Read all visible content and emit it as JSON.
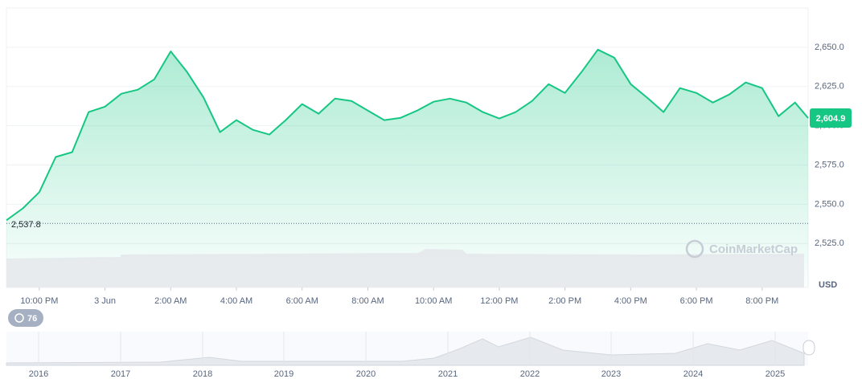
{
  "chart_data": {
    "type": "area",
    "x": [
      -1,
      -0.5,
      0,
      0.5,
      1,
      1.5,
      2,
      2.5,
      3,
      3.5,
      4,
      4.5,
      5,
      5.5,
      6,
      6.5,
      7,
      7.5,
      8,
      8.5,
      9,
      9.5,
      10,
      10.5,
      11,
      11.5,
      12,
      12.5,
      13,
      13.5,
      14,
      14.5,
      15,
      15.5,
      16,
      16.5,
      17,
      17.5,
      18,
      18.5,
      19,
      19.5,
      20,
      20.5,
      21,
      21.5,
      22,
      22.5,
      23,
      23.4
    ],
    "series": [
      {
        "color": "#16c784",
        "values": [
          2539.8,
          2547.4,
          2557.7,
          2580.1,
          2583.2,
          2608.7,
          2612.2,
          2620.4,
          2623.0,
          2629.6,
          2647.4,
          2634.2,
          2617.9,
          2595.9,
          2603.6,
          2597.4,
          2594.4,
          2603.6,
          2613.8,
          2607.7,
          2617.3,
          2615.8,
          2609.7,
          2603.6,
          2605.1,
          2609.7,
          2615.3,
          2617.3,
          2614.8,
          2608.7,
          2604.6,
          2608.7,
          2615.8,
          2626.5,
          2620.9,
          2634.2,
          2648.5,
          2643.4,
          2626.5,
          2617.9,
          2608.7,
          2624.0,
          2620.9,
          2614.8,
          2619.9,
          2627.6,
          2624.0,
          2606.1,
          2614.8,
          2604.9
        ]
      }
    ],
    "xlim": [
      -1,
      23.4
    ],
    "xticks": [
      {
        "value": 0,
        "label": "10:00 PM"
      },
      {
        "value": 2,
        "label": "3 Jun"
      },
      {
        "value": 4,
        "label": "2:00 AM"
      },
      {
        "value": 6,
        "label": "4:00 AM"
      },
      {
        "value": 8,
        "label": "6:00 AM"
      },
      {
        "value": 10,
        "label": "8:00 AM"
      },
      {
        "value": 12,
        "label": "10:00 AM"
      },
      {
        "value": 14,
        "label": "12:00 PM"
      },
      {
        "value": 16,
        "label": "2:00 PM"
      },
      {
        "value": 18,
        "label": "4:00 PM"
      },
      {
        "value": 20,
        "label": "6:00 PM"
      },
      {
        "value": 22,
        "label": "8:00 PM"
      }
    ],
    "ylim": [
      2497,
      2675
    ],
    "yticks": [
      {
        "value": 2525,
        "label": "2,525.0"
      },
      {
        "value": 2550,
        "label": "2,550.0"
      },
      {
        "value": 2575,
        "label": "2,575.0"
      },
      {
        "value": 2600,
        "label": "2,600.0"
      },
      {
        "value": 2625,
        "label": "2,625.0"
      },
      {
        "value": 2650,
        "label": "2,650.0"
      }
    ],
    "grid": true,
    "open_price": {
      "value": 2537.8,
      "label": "2,537.8"
    },
    "current_price": {
      "value": 2604.9,
      "label": "2,604.9"
    },
    "currency": "USD",
    "watermark": "CoinMarketCap",
    "badge": "76",
    "navigator_years": [
      "2016",
      "2017",
      "2018",
      "2019",
      "2020",
      "2021",
      "2022",
      "2023",
      "2024",
      "2025"
    ]
  }
}
